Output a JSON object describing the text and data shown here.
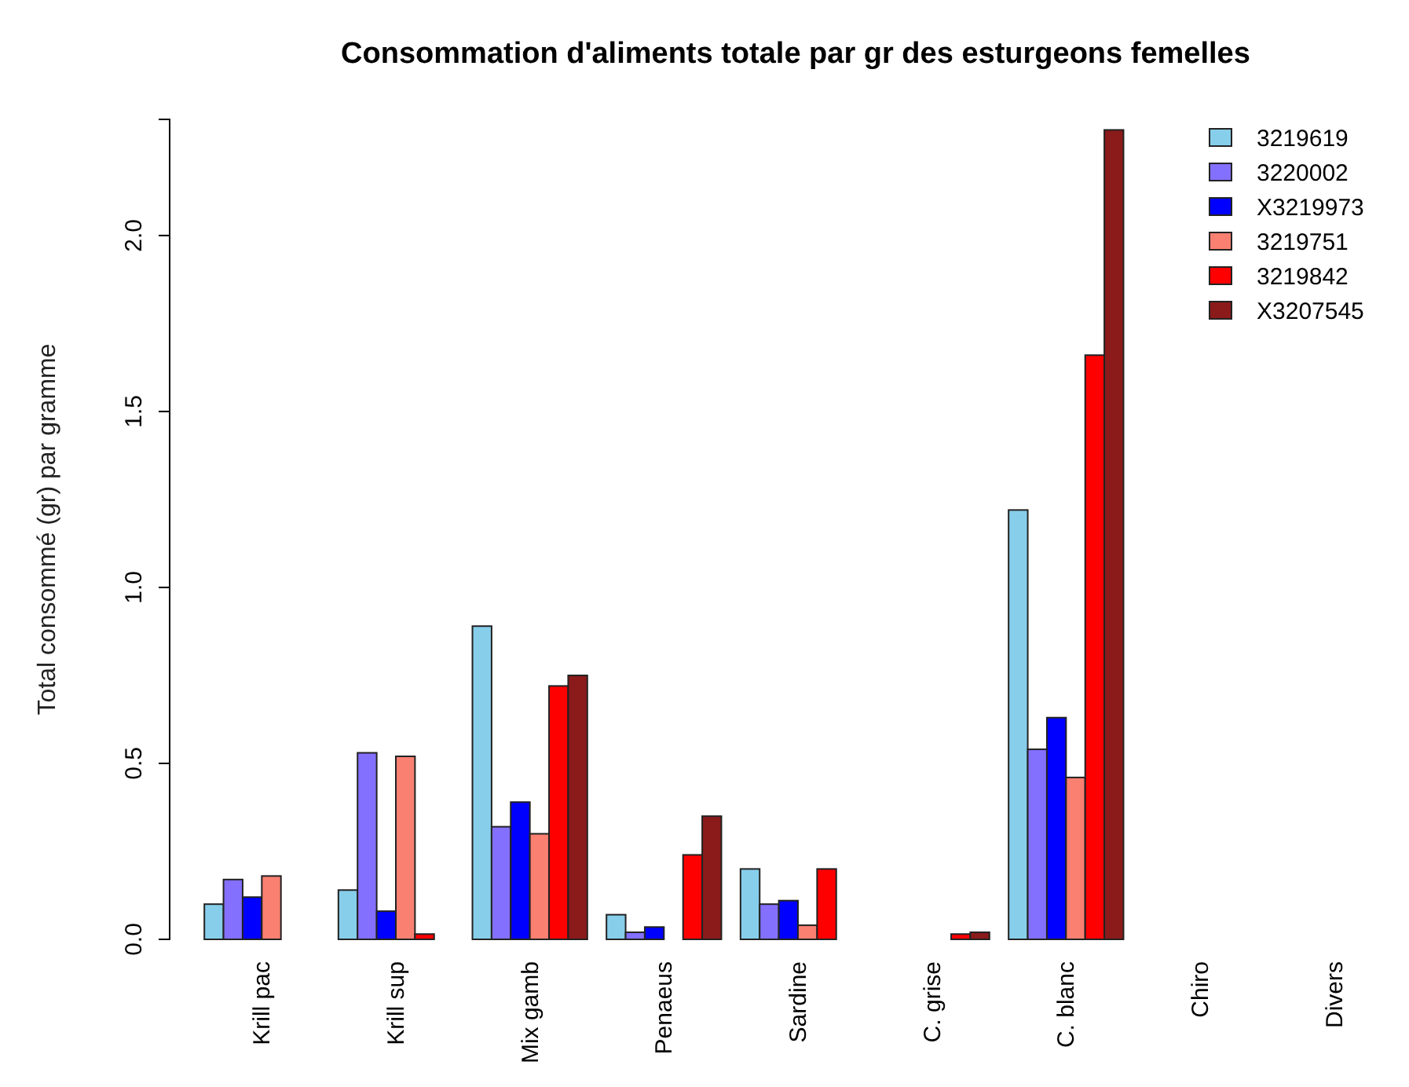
{
  "chart_data": {
    "type": "bar",
    "title": "Consommation d'aliments totale par gr des esturgeons femelles",
    "ylabel": "Total consommé (gr) par gramme",
    "categories": [
      "Krill pac",
      "Krill sup",
      "Mix gamb",
      "Penaeus",
      "Sardine",
      "C. grise",
      "C. blanc",
      "Chiro",
      "Divers"
    ],
    "series": [
      {
        "name": "3219619",
        "color": "#87ceeb",
        "values": [
          0.1,
          0.14,
          0.89,
          0.07,
          0.2,
          0,
          1.22,
          0,
          0
        ]
      },
      {
        "name": "3220002",
        "color": "#8470ff",
        "values": [
          0.17,
          0.53,
          0.32,
          0.02,
          0.1,
          0,
          0.54,
          0,
          0
        ]
      },
      {
        "name": "X3219973",
        "color": "#0000ff",
        "values": [
          0.12,
          0.08,
          0.39,
          0.035,
          0.11,
          0,
          0.63,
          0,
          0
        ]
      },
      {
        "name": "3219751",
        "color": "#fa8072",
        "values": [
          0.18,
          0.52,
          0.3,
          0,
          0.04,
          0,
          0.46,
          0,
          0
        ]
      },
      {
        "name": "3219842",
        "color": "#ff0000",
        "values": [
          0,
          0.015,
          0.72,
          0.24,
          0.2,
          0.015,
          1.66,
          0,
          0
        ]
      },
      {
        "name": "X3207545",
        "color": "#8b1a1a",
        "values": [
          0,
          0,
          0.75,
          0.35,
          0,
          0.02,
          2.3,
          0,
          0
        ]
      }
    ],
    "ylim": [
      0,
      2.33
    ],
    "yticks": [
      {
        "value": 0,
        "label": "0.0"
      },
      {
        "value": 0.5,
        "label": "0.5"
      },
      {
        "value": 1,
        "label": "1.0"
      },
      {
        "value": 1.5,
        "label": "1.5"
      },
      {
        "value": 2,
        "label": "2.0"
      }
    ],
    "legend": "top right",
    "grid": false
  }
}
